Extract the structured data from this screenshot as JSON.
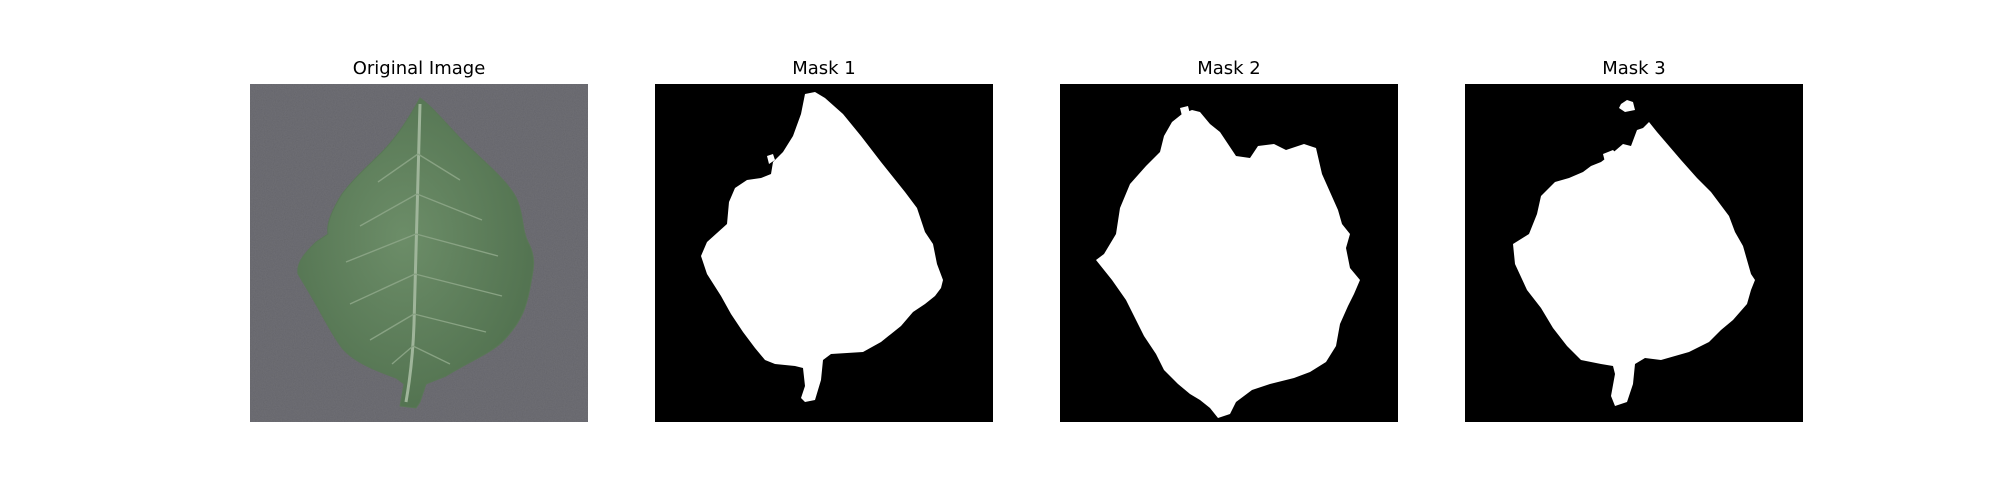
{
  "figure": {
    "panels": [
      {
        "title": "Original Image",
        "content": "leaf-photo"
      },
      {
        "title": "Mask 1",
        "content": "binary-mask"
      },
      {
        "title": "Mask 2",
        "content": "binary-mask"
      },
      {
        "title": "Mask 3",
        "content": "binary-mask"
      }
    ]
  },
  "colors": {
    "background": "#ffffff",
    "mask_background": "#000000",
    "mask_foreground": "#ffffff",
    "leaf_green": "#5f7f5c",
    "surface_gray": "#6e6e74"
  }
}
